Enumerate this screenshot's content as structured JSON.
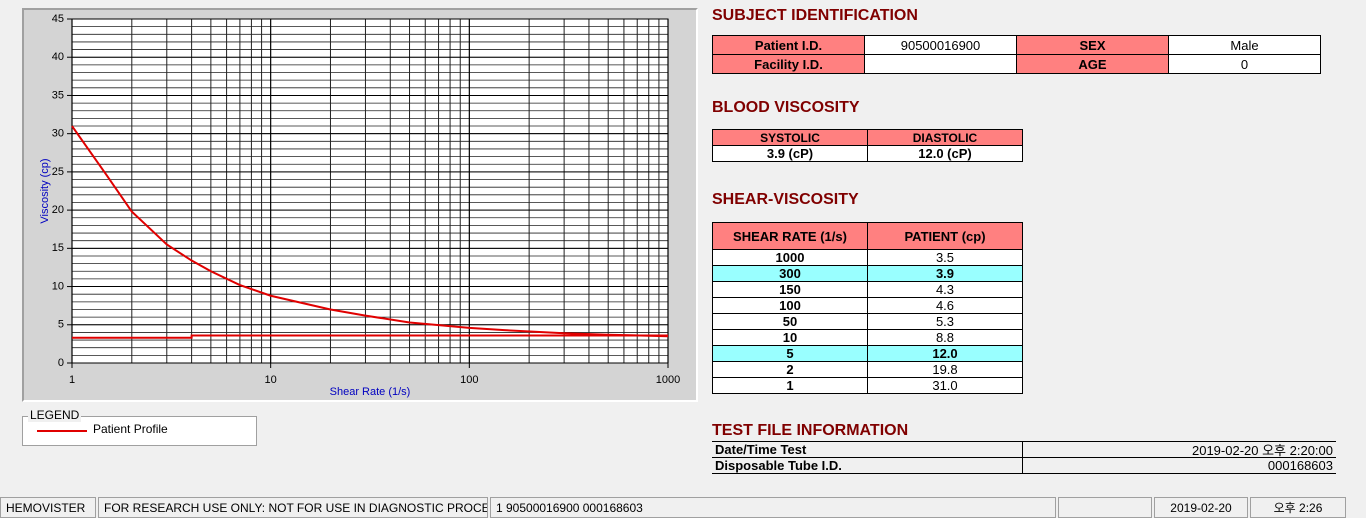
{
  "chart_data": {
    "type": "line",
    "x_label": "Shear Rate (1/s)",
    "y_label": "Viscosity (cp)",
    "xlim": [
      1,
      1000
    ],
    "xticks": [
      1,
      10,
      100,
      1000
    ],
    "xscale": "log",
    "ylim": [
      0,
      45
    ],
    "yticks": [
      0,
      5,
      10,
      15,
      20,
      25,
      30,
      35,
      40,
      45
    ],
    "grid": true,
    "minor_grid": true,
    "series": [
      {
        "name": "Patient Profile",
        "color": "#e00000",
        "x": [
          1,
          1.5,
          2,
          3,
          4,
          5,
          7,
          10,
          20,
          30,
          50,
          100,
          150,
          300,
          500,
          1000
        ],
        "values": [
          31,
          24.5,
          19.8,
          15.5,
          13.4,
          12,
          10.2,
          8.8,
          7,
          6.2,
          5.3,
          4.6,
          4.3,
          3.9,
          3.7,
          3.5
        ]
      },
      {
        "color": "#e00000",
        "x": [
          1,
          4,
          4,
          1000
        ],
        "values": [
          3.3,
          3.3,
          3.6,
          3.6
        ]
      }
    ]
  },
  "legend": {
    "title": "LEGEND"
  },
  "subject": {
    "title": "SUBJECT IDENTIFICATION",
    "rows": [
      [
        "Patient I.D.",
        "90500016900",
        "SEX",
        "Male"
      ],
      [
        "Facility I.D.",
        null,
        "AGE",
        "0"
      ]
    ]
  },
  "blood_viscosity": {
    "title": "BLOOD VISCOSITY",
    "headers": [
      "SYSTOLIC",
      "DIASTOLIC"
    ],
    "values": [
      "3.9 (cP)",
      "12.0 (cP)"
    ]
  },
  "shear_viscosity": {
    "title": "SHEAR-VISCOSITY",
    "headers": [
      "SHEAR RATE (1/s)",
      "PATIENT (cp)"
    ],
    "rows": [
      [
        "1000",
        "3.5"
      ],
      [
        "300",
        "3.9"
      ],
      [
        "150",
        "4.3"
      ],
      [
        "100",
        "4.6"
      ],
      [
        "50",
        "5.3"
      ],
      [
        "10",
        "8.8"
      ],
      [
        "5",
        "12.0"
      ],
      [
        "2",
        "19.8"
      ],
      [
        "1",
        "31.0"
      ]
    ],
    "highlighted_rows": [
      1,
      6
    ]
  },
  "test_file": {
    "title": "TEST FILE INFORMATION",
    "rows": [
      [
        "Date/Time Test",
        "2019-02-20   오후 2:20:00"
      ],
      [
        "Disposable Tube I.D.",
        "000168603"
      ]
    ]
  },
  "status_bar": [
    "HEMOVISTER",
    "FOR RESEARCH USE ONLY: NOT FOR USE IN DIAGNOSTIC PROCEDURES",
    "1  90500016900  000168603",
    null,
    "2019-02-20",
    "오후 2:26"
  ]
}
